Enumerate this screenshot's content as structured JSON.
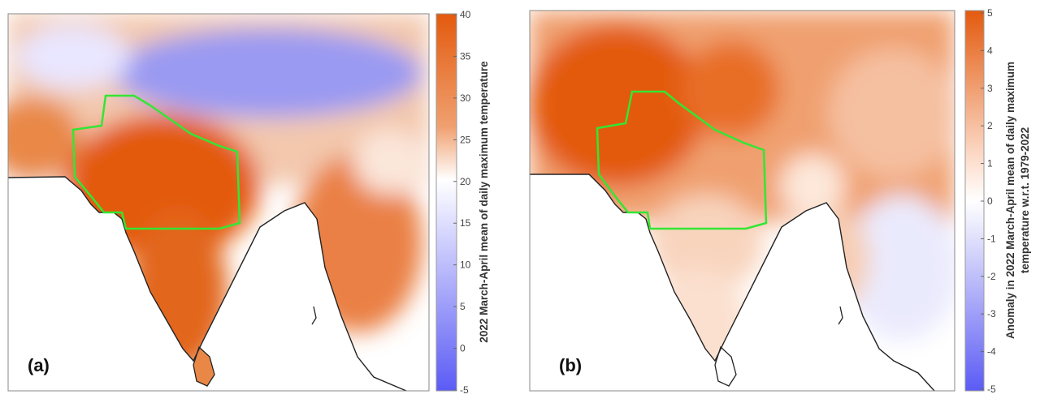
{
  "chart_data": [
    {
      "type": "heatmap",
      "panel_label": "(a)",
      "colorbar": {
        "label": "2022 March-April mean of daily maximum temperature",
        "ticks": [
          "40",
          "35",
          "30",
          "25",
          "20",
          "15",
          "10",
          "5",
          "0",
          "-5"
        ],
        "range": [
          -5,
          40
        ],
        "low_color": "#5b5bf5",
        "mid_color": "#ffffff",
        "high_color": "#e35a0e"
      },
      "outline_color": "#33e633"
    },
    {
      "type": "heatmap",
      "panel_label": "(b)",
      "colorbar": {
        "label_line1": "Anomaly in 2022 March-April mean of daily maximum",
        "label_line2": "temperature w.r.t. 1979-2022",
        "ticks": [
          "5",
          "4",
          "3",
          "2",
          "1",
          "0",
          "-1",
          "-2",
          "-3",
          "-4",
          "-5"
        ],
        "range": [
          -5,
          5
        ],
        "low_color": "#5b5bf5",
        "mid_color": "#ffffff",
        "high_color": "#e35a0e"
      },
      "outline_color": "#33e633"
    }
  ]
}
